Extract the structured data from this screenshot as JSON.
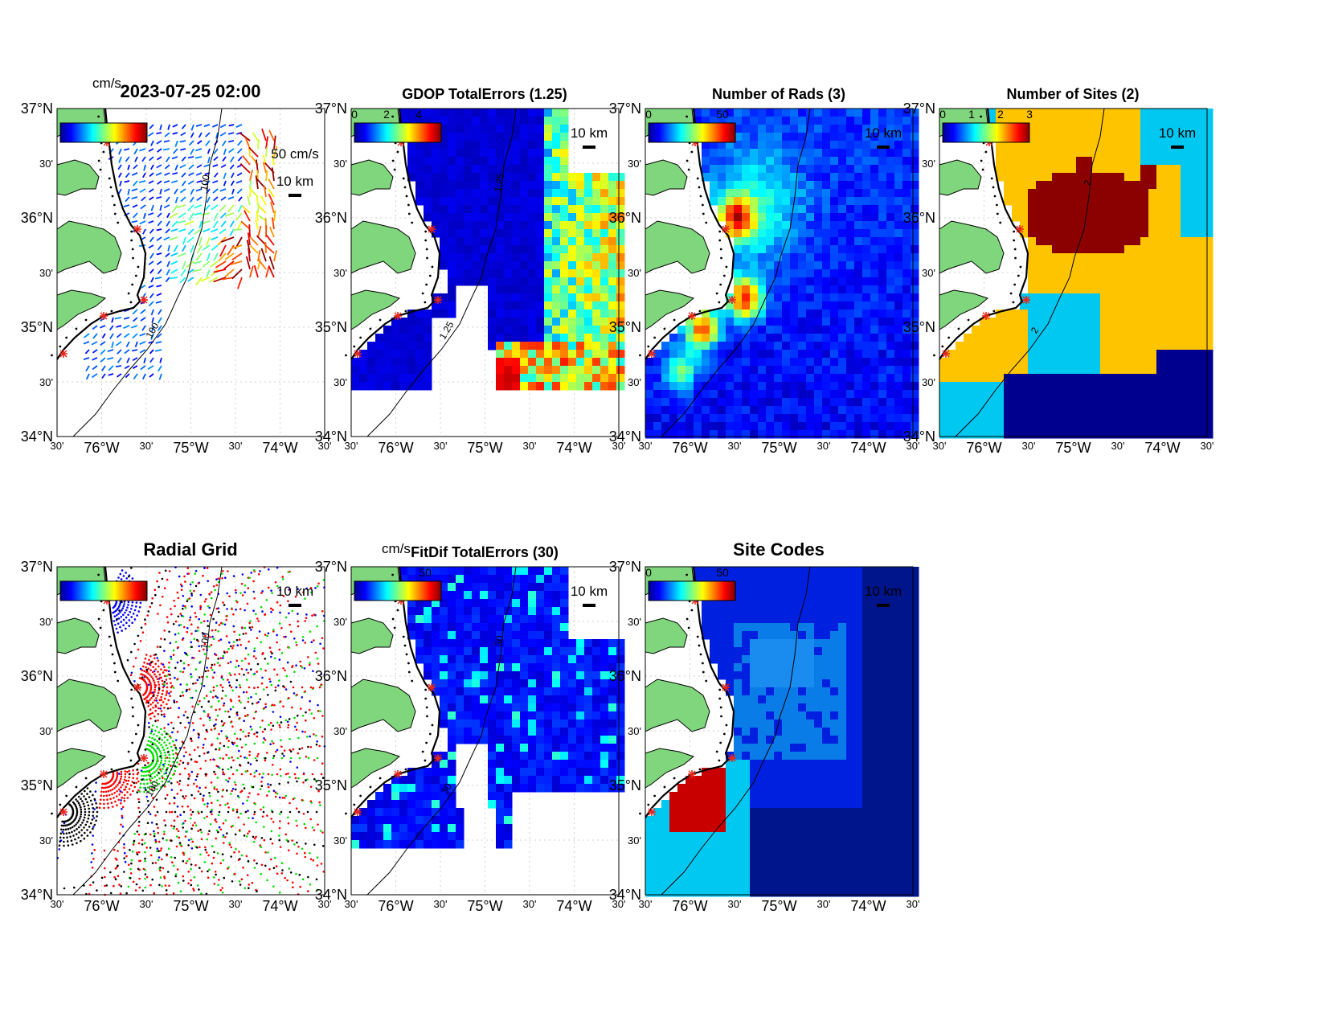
{
  "figure": {
    "timestamp": "2023-07-25 02:00",
    "colorbar_unit": "cm/s",
    "scale_label": "10 km",
    "vector_scale_label": "50 cm/s",
    "lat_ticks": [
      "37°N",
      "30'",
      "36°N",
      "30'",
      "35°N",
      "30'",
      "34°N"
    ],
    "lon_ticks": [
      "30'",
      "76°W",
      "30'",
      "75°W",
      "30'",
      "74°W",
      "30'"
    ],
    "depth_contour_label": "100",
    "land_color": "#80d67c",
    "site_marker_color": "#e8261a"
  },
  "panels": [
    {
      "key": "currents",
      "title": "2023-07-25 02:00",
      "colorbar_ticks": [],
      "colorbar_unit": "cm/s",
      "contour_labels": [
        "100",
        "100"
      ]
    },
    {
      "key": "gdop",
      "title": "GDOP TotalErrors (1.25)",
      "colorbar_ticks": [
        "0",
        "2",
        "4"
      ],
      "contour_labels": [
        "1.25",
        "1.25"
      ]
    },
    {
      "key": "nrads",
      "title": "Number of Rads (3)",
      "colorbar_ticks": [
        "0",
        "50"
      ],
      "contour_labels": []
    },
    {
      "key": "nsites",
      "title": "Number of Sites (2)",
      "colorbar_ticks": [
        "0",
        "1",
        "2",
        "3"
      ],
      "contour_labels": [
        "2",
        "2",
        "2",
        "2"
      ]
    },
    {
      "key": "radgrid",
      "title": "Radial Grid",
      "colorbar_ticks": [],
      "contour_labels": [
        "100",
        "100"
      ]
    },
    {
      "key": "fitdif",
      "title": "FitDif TotalErrors (30)",
      "colorbar_ticks": [
        "50"
      ],
      "colorbar_unit": "cm/s",
      "contour_labels": [
        "30",
        "30"
      ]
    },
    {
      "key": "sitecodes",
      "title": "Site Codes",
      "colorbar_ticks": [
        "0",
        "50"
      ],
      "contour_labels": []
    }
  ]
}
